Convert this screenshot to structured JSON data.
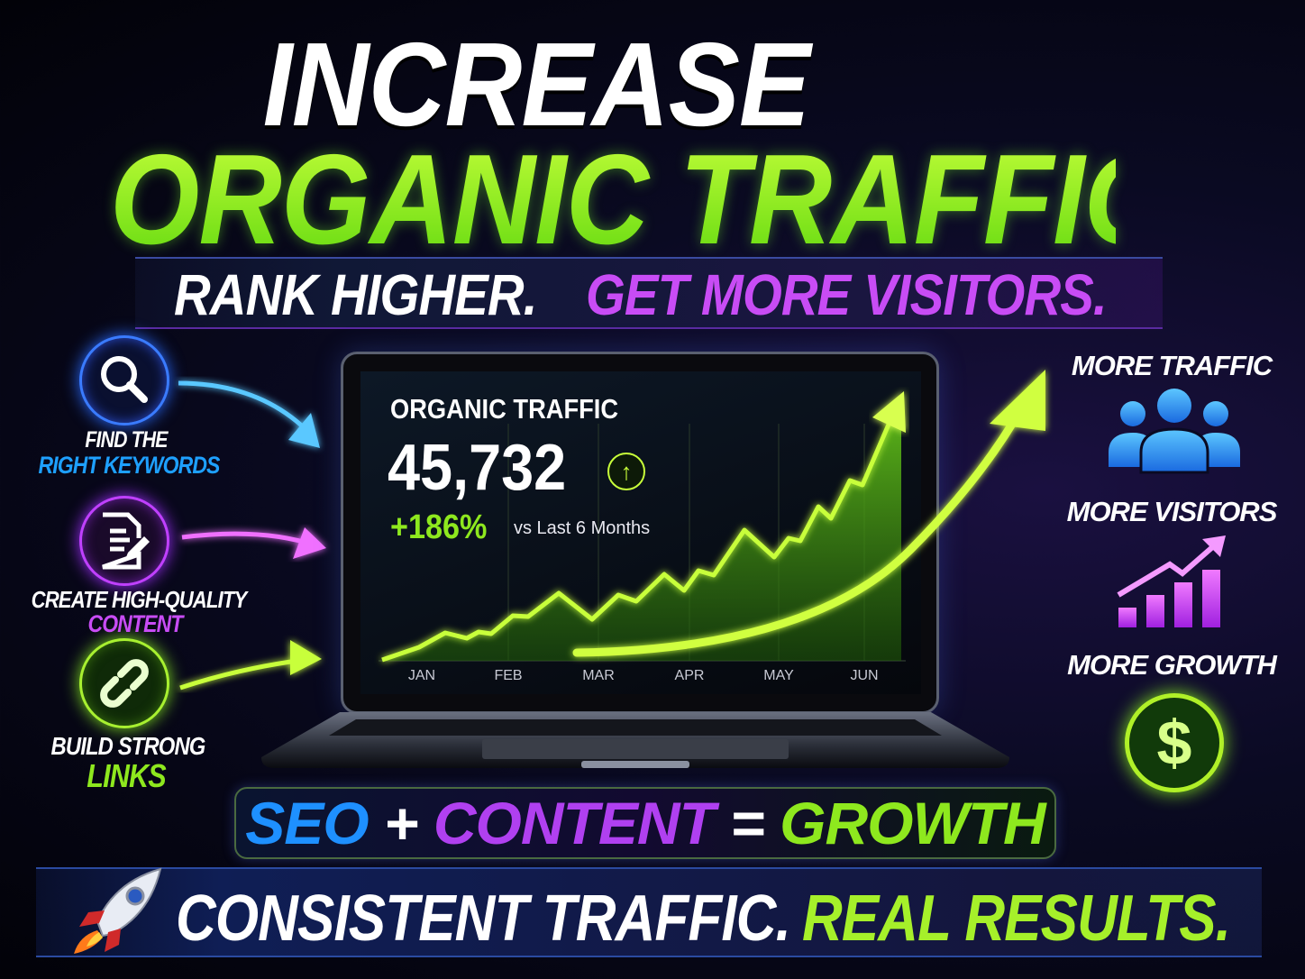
{
  "headline": {
    "line1": "INCREASE",
    "line2": "ORGANIC TRAFFIC"
  },
  "subhead": {
    "part1": "RANK HIGHER.",
    "part2": "GET MORE VISITORS."
  },
  "steps": [
    {
      "icon": "search-icon",
      "line1": "FIND THE",
      "line2": "RIGHT KEYWORDS",
      "color": "#1ea0ff"
    },
    {
      "icon": "document-edit-icon",
      "line1": "CREATE HIGH-QUALITY",
      "line2": "CONTENT",
      "color": "#c84cf5"
    },
    {
      "icon": "link-icon",
      "line1": "BUILD STRONG",
      "line2": "LINKS",
      "color": "#8ee81e"
    }
  ],
  "dashboard": {
    "title": "ORGANIC TRAFFIC",
    "value": "45,732",
    "change": "+186%",
    "comparison": "vs Last 6 Months",
    "months": [
      "JAN",
      "FEB",
      "MAR",
      "APR",
      "MAY",
      "JUN"
    ]
  },
  "benefits": [
    {
      "label": "MORE TRAFFIC",
      "icon": "users-icon"
    },
    {
      "label": "MORE VISITORS",
      "icon": "growth-chart-icon"
    },
    {
      "label": "MORE GROWTH",
      "icon": "dollar-icon"
    }
  ],
  "equation": {
    "seo": "SEO",
    "plus": "+",
    "content": "CONTENT",
    "equals": "=",
    "growth": "GROWTH"
  },
  "footer": {
    "part1": "CONSISTENT TRAFFIC.",
    "part2": "REAL RESULTS.",
    "icon": "rocket-icon"
  },
  "colors": {
    "lime": "#8ee81e",
    "purple": "#c84cf5",
    "blue": "#1ea0ff"
  }
}
